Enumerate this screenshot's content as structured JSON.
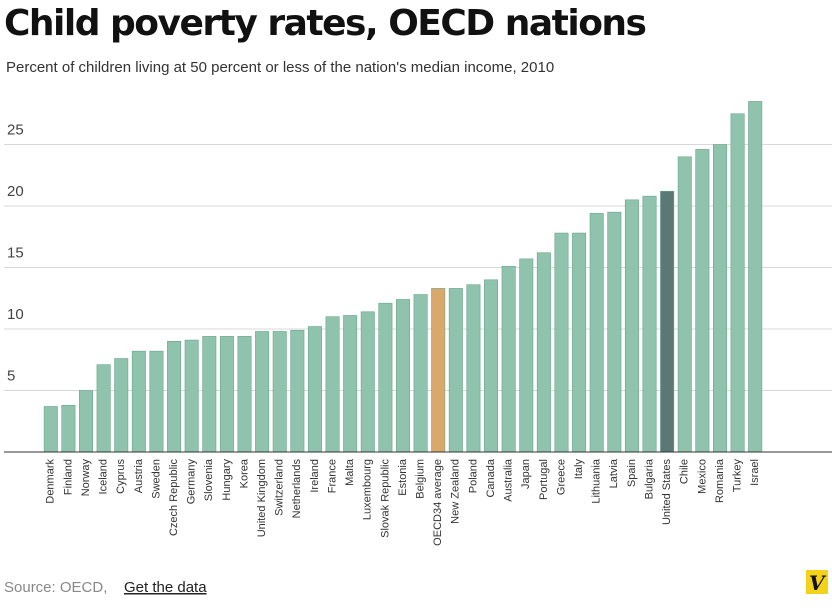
{
  "chart_data": {
    "type": "bar",
    "title": "Child poverty rates, OECD nations",
    "subtitle": "Percent of children living at 50 percent or less of the nation's median income, 2010",
    "categories": [
      "Denmark",
      "Finland",
      "Norway",
      "Iceland",
      "Cyprus",
      "Austria",
      "Sweden",
      "Czech Republic",
      "Germany",
      "Slovenia",
      "Hungary",
      "Korea",
      "United Kingdom",
      "Switzerland",
      "Netherlands",
      "Ireland",
      "France",
      "Malta",
      "Luxembourg",
      "Slovak Republic",
      "Estonia",
      "Belgium",
      "OECD34 average",
      "New Zealand",
      "Poland",
      "Canada",
      "Australia",
      "Japan",
      "Portugal",
      "Greece",
      "Italy",
      "Lithuania",
      "Latvia",
      "Spain",
      "Bulgaria",
      "United States",
      "Chile",
      "Mexico",
      "Romania",
      "Turkey",
      "Israel"
    ],
    "values": [
      3.7,
      3.8,
      5.0,
      7.1,
      7.6,
      8.2,
      8.2,
      9.0,
      9.1,
      9.4,
      9.4,
      9.4,
      9.8,
      9.8,
      9.9,
      10.2,
      11.0,
      11.1,
      11.4,
      12.1,
      12.4,
      12.8,
      13.3,
      13.3,
      13.6,
      14.0,
      15.1,
      15.7,
      16.2,
      17.8,
      17.8,
      19.4,
      19.5,
      20.5,
      20.8,
      21.2,
      24.0,
      24.6,
      25.0,
      27.5,
      28.5
    ],
    "colors": [
      "#8fc3ad",
      "#8fc3ad",
      "#8fc3ad",
      "#8fc3ad",
      "#8fc3ad",
      "#8fc3ad",
      "#8fc3ad",
      "#8fc3ad",
      "#8fc3ad",
      "#8fc3ad",
      "#8fc3ad",
      "#8fc3ad",
      "#8fc3ad",
      "#8fc3ad",
      "#8fc3ad",
      "#8fc3ad",
      "#8fc3ad",
      "#8fc3ad",
      "#8fc3ad",
      "#8fc3ad",
      "#8fc3ad",
      "#8fc3ad",
      "#d9a86a",
      "#8fc3ad",
      "#8fc3ad",
      "#8fc3ad",
      "#8fc3ad",
      "#8fc3ad",
      "#8fc3ad",
      "#8fc3ad",
      "#8fc3ad",
      "#8fc3ad",
      "#8fc3ad",
      "#8fc3ad",
      "#8fc3ad",
      "#5b7877",
      "#8fc3ad",
      "#8fc3ad",
      "#8fc3ad",
      "#8fc3ad",
      "#8fc3ad"
    ],
    "ylim": [
      0,
      30
    ],
    "yticks": [
      5,
      10,
      15,
      20,
      25
    ],
    "grid": true,
    "source": "Source: OECD,",
    "source_link": "Get the data",
    "logo": "V"
  }
}
